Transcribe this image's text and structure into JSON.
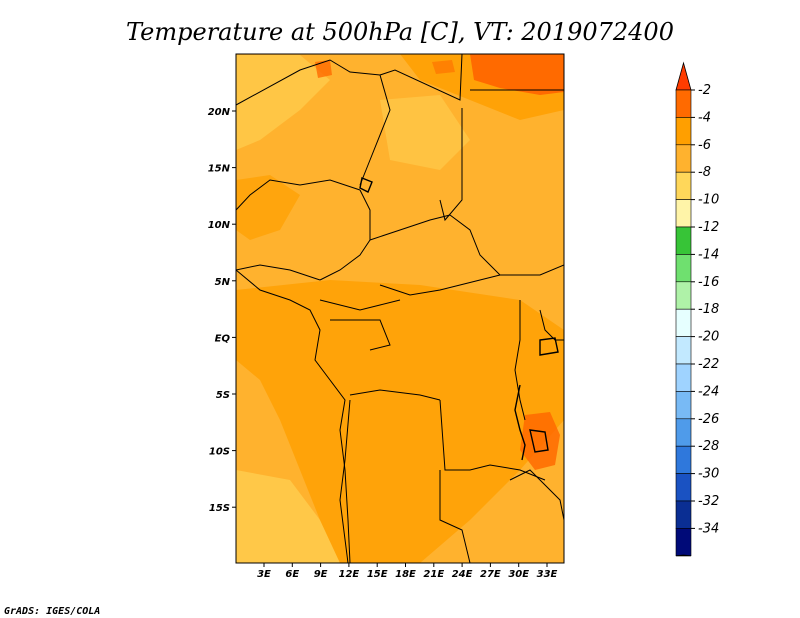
{
  "title": "Temperature at 500hPa [C], VT: 2019072400",
  "credit": "GrADS: IGES/COLA",
  "map": {
    "lon_ticks": [
      "3E",
      "6E",
      "9E",
      "12E",
      "15E",
      "18E",
      "21E",
      "24E",
      "27E",
      "30E",
      "33E"
    ],
    "lat_ticks": [
      "20N",
      "15N",
      "10N",
      "5N",
      "EQ",
      "5S",
      "10S",
      "15S"
    ],
    "field_colors": {
      "warmest": "#ff6a00",
      "warm": "#ff9f00",
      "mid": "#ffb22e",
      "cool": "#ffd75a",
      "coolest": "#fff4a8"
    }
  },
  "colorbar": {
    "labels": [
      "-2",
      "-4",
      "-6",
      "-8",
      "-10",
      "-12",
      "-14",
      "-16",
      "-18",
      "-20",
      "-22",
      "-24",
      "-26",
      "-28",
      "-30",
      "-32",
      "-34"
    ],
    "colors": [
      "#ff3c00",
      "#ff6a00",
      "#ff9f00",
      "#ffb22e",
      "#ffd75a",
      "#fff4a8",
      "#37c437",
      "#6fe06f",
      "#aff2a8",
      "#e6ffff",
      "#c2e9ff",
      "#9fd3ff",
      "#78baf5",
      "#4f9bea",
      "#2f78dc",
      "#1a52c2",
      "#0a2e93",
      "#000a78",
      "#dcdcff"
    ]
  }
}
